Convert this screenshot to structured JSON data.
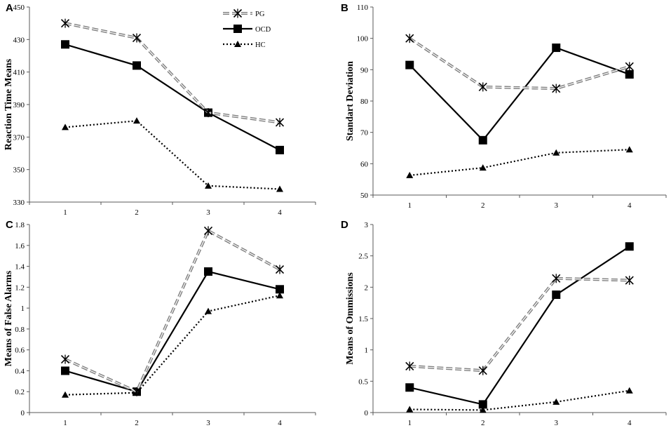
{
  "legend": [
    {
      "name": "PG",
      "style": "pg"
    },
    {
      "name": "OCD",
      "style": "ocd"
    },
    {
      "name": "HC",
      "style": "hc"
    }
  ],
  "colors": {
    "pg": "#7f7f7f",
    "ocd": "#000000",
    "hc": "#000000"
  },
  "chart_data": [
    {
      "type": "line",
      "panel_label": "A",
      "title": "",
      "xlabel": "",
      "ylabel": "Reaction Time Means",
      "categories": [
        "1",
        "2",
        "3",
        "4"
      ],
      "ylim": [
        330,
        450
      ],
      "yticks": [
        "330",
        "350",
        "370",
        "390",
        "410",
        "430",
        "450"
      ],
      "series": [
        {
          "name": "PG",
          "values": [
            440,
            431,
            385,
            379
          ]
        },
        {
          "name": "OCD",
          "values": [
            427,
            414,
            385,
            362
          ]
        },
        {
          "name": "HC",
          "values": [
            376,
            380,
            340,
            338
          ]
        }
      ]
    },
    {
      "type": "line",
      "panel_label": "B",
      "title": "",
      "xlabel": "",
      "ylabel": "Standart Deviation",
      "categories": [
        "1",
        "2",
        "3",
        "4"
      ],
      "ylim": [
        50,
        110
      ],
      "yticks": [
        "50",
        "60",
        "70",
        "80",
        "90",
        "100",
        "110"
      ],
      "series": [
        {
          "name": "PG",
          "values": [
            100,
            84.5,
            84,
            91
          ]
        },
        {
          "name": "OCD",
          "values": [
            91.5,
            67.5,
            97,
            88.5
          ]
        },
        {
          "name": "HC",
          "values": [
            56.3,
            58.7,
            63.5,
            64.5
          ]
        }
      ]
    },
    {
      "type": "line",
      "panel_label": "C",
      "title": "",
      "xlabel": "",
      "ylabel": "Means of False Alarms",
      "categories": [
        "1",
        "2",
        "3",
        "4"
      ],
      "ylim": [
        0,
        1.8
      ],
      "yticks": [
        "0",
        "0.2",
        "0.4",
        "0.6",
        "0.8",
        "1",
        "1.2",
        "1.4",
        "1.6",
        "1.8"
      ],
      "series": [
        {
          "name": "PG",
          "values": [
            0.51,
            0.2,
            1.74,
            1.37
          ]
        },
        {
          "name": "OCD",
          "values": [
            0.4,
            0.2,
            1.35,
            1.18
          ]
        },
        {
          "name": "HC",
          "values": [
            0.17,
            0.19,
            0.97,
            1.12
          ]
        }
      ]
    },
    {
      "type": "line",
      "panel_label": "D",
      "title": "",
      "xlabel": "",
      "ylabel": "Means of Ommissions",
      "categories": [
        "1",
        "2",
        "3",
        "4"
      ],
      "ylim": [
        0,
        3
      ],
      "yticks": [
        "0",
        "0.5",
        "1",
        "1.5",
        "2",
        "2.5",
        "3"
      ],
      "series": [
        {
          "name": "PG",
          "values": [
            0.74,
            0.67,
            2.14,
            2.11
          ]
        },
        {
          "name": "OCD",
          "values": [
            0.4,
            0.13,
            1.88,
            2.65
          ]
        },
        {
          "name": "HC",
          "values": [
            0.05,
            0.04,
            0.17,
            0.35
          ]
        }
      ]
    }
  ]
}
